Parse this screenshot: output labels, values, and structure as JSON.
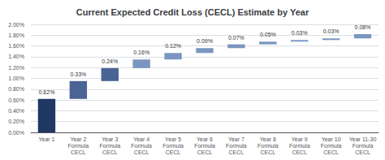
{
  "chart_data": {
    "type": "waterfall",
    "title": "Current Expected Credit Loss (CECL) Estimate by Year",
    "categories": [
      "Year 1",
      "Year 2\nFormula\nCECL",
      "Year 3\nFormula\nCECL",
      "Year 4\nFormula\nCECL",
      "Year 5\nFormula\nCECL",
      "Year 6\nFormula\nCECL",
      "Year 7\nFormula\nCECL",
      "Year 8\nFormula\nCECL",
      "Year 9\nFormula\nCECL",
      "Year 10\nFormula\nCECL",
      "Year 11-30\nFormula\nCECL"
    ],
    "values": [
      0.0062,
      0.0033,
      0.0024,
      0.0016,
      0.0012,
      0.0009,
      0.0007,
      0.0005,
      0.0003,
      0.0003,
      0.0008
    ],
    "value_labels": [
      "0.62%",
      "0.33%",
      "0.24%",
      "0.16%",
      "0.12%",
      "0.09%",
      "0.07%",
      "0.05%",
      "0.03%",
      "0.03%",
      "0.08%"
    ],
    "data_labels": true,
    "colors": [
      "#1F3864",
      "#4A6494",
      "#4A6494",
      "#7A96C0",
      "#7A96C0",
      "#7A96C0",
      "#7A96C0",
      "#7A96C0",
      "#7A96C0",
      "#7A96C0",
      "#7A96C0"
    ],
    "ylim": [
      0.0,
      0.02
    ],
    "yticks": [
      {
        "value": 0.0,
        "label": "0.00%"
      },
      {
        "value": 0.002,
        "label": "0.20%"
      },
      {
        "value": 0.004,
        "label": "0.40%"
      },
      {
        "value": 0.006,
        "label": "0.60%"
      },
      {
        "value": 0.008,
        "label": "0.80%"
      },
      {
        "value": 0.01,
        "label": "1.00%"
      },
      {
        "value": 0.012,
        "label": "1.20%"
      },
      {
        "value": 0.014,
        "label": "1.40%"
      },
      {
        "value": 0.016,
        "label": "1.60%"
      },
      {
        "value": 0.018,
        "label": "1.80%"
      },
      {
        "value": 0.02,
        "label": "2.00%"
      }
    ],
    "grid": true
  }
}
